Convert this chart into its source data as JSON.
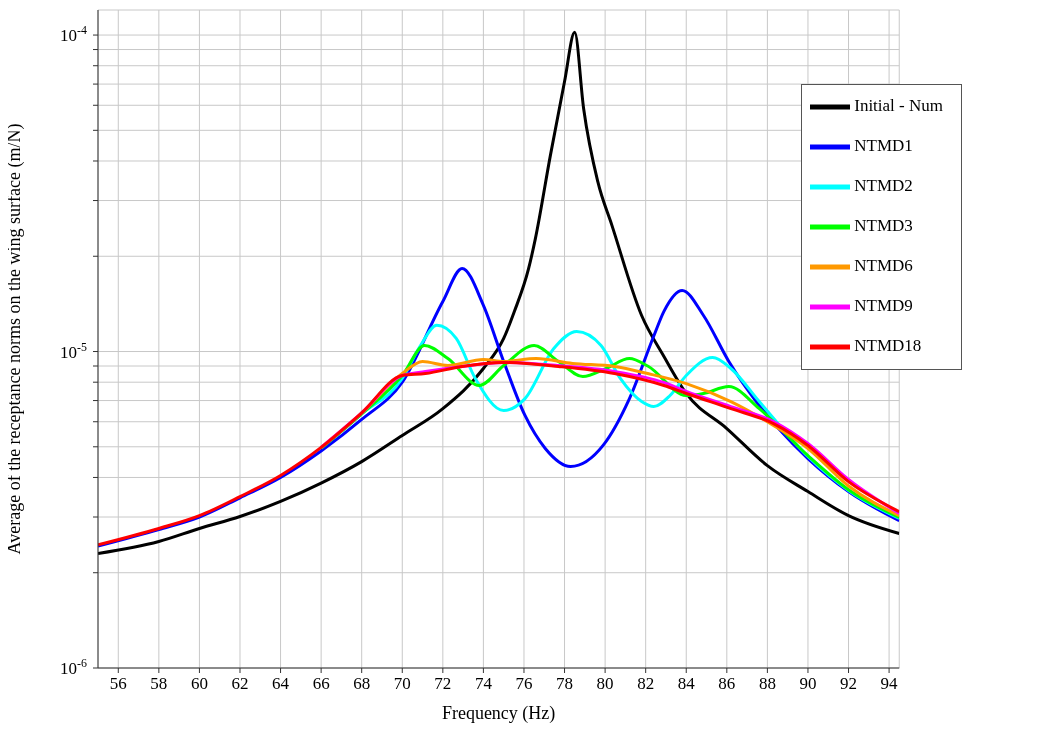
{
  "chart_data": {
    "type": "line",
    "xlabel": "Frequency (Hz)",
    "ylabel": "Average of the receptance norms on the wing surface (m/N)",
    "xlim": [
      55,
      94.5
    ],
    "xticks": [
      56,
      58,
      60,
      62,
      64,
      66,
      68,
      70,
      72,
      74,
      76,
      78,
      80,
      82,
      84,
      86,
      88,
      90,
      92,
      94
    ],
    "ylim": [
      1e-06,
      0.00012
    ],
    "log": "y",
    "yticks": [
      {
        "value": 1e-06,
        "label": "10$^{-6}$"
      },
      {
        "value": 2e-06,
        "label": null
      },
      {
        "value": 3e-06,
        "label": null
      },
      {
        "value": 4e-06,
        "label": null
      },
      {
        "value": 5e-06,
        "label": null
      },
      {
        "value": 6e-06,
        "label": null
      },
      {
        "value": 7e-06,
        "label": null
      },
      {
        "value": 8e-06,
        "label": null
      },
      {
        "value": 9e-06,
        "label": null
      },
      {
        "value": 1e-05,
        "label": "10$^{-5}$"
      },
      {
        "value": 2e-05,
        "label": null
      },
      {
        "value": 3e-05,
        "label": null
      },
      {
        "value": 4e-05,
        "label": null
      },
      {
        "value": 5e-05,
        "label": null
      },
      {
        "value": 6e-05,
        "label": null
      },
      {
        "value": 7e-05,
        "label": null
      },
      {
        "value": 8e-05,
        "label": null
      },
      {
        "value": 9e-05,
        "label": null
      },
      {
        "value": 0.0001,
        "label": "10$^{-4}$"
      }
    ],
    "grid": true,
    "legend": "top right",
    "line_style": "solid",
    "series": [
      {
        "name": "Initial - Num",
        "color": "#000000",
        "x": [
          55,
          58,
          60,
          62,
          64,
          66,
          68,
          70,
          72,
          74,
          75,
          75.53,
          76.23,
          76.56,
          77.3,
          78,
          78.5,
          78.94,
          79.64,
          80.34,
          81.8,
          82.9,
          84,
          86,
          88,
          90,
          92,
          94.5
        ],
        "values": [
          2.3e-06,
          2.51e-06,
          2.76e-06,
          3.01e-06,
          3.36e-06,
          3.84e-06,
          4.49e-06,
          5.43e-06,
          6.6e-06,
          8.84e-06,
          1.1e-05,
          1.34e-05,
          1.83e-05,
          2.27e-05,
          4.16e-05,
          7.13e-05,
          0.000102,
          5.86e-05,
          3.44e-05,
          2.5e-05,
          1.3e-05,
          9.65e-06,
          7.37e-06,
          5.71e-06,
          4.36e-06,
          3.61e-06,
          3.03e-06,
          2.66e-06
        ]
      },
      {
        "name": "NTMD1",
        "color": "#0000ff",
        "x": [
          55,
          58,
          60,
          62,
          64,
          66,
          68,
          70,
          72,
          72.95,
          74,
          75,
          76.05,
          77.05,
          78.3,
          79.9,
          81.2,
          82.4,
          82.9,
          83.8,
          84.85,
          86.1,
          87.6,
          88.55,
          90,
          92,
          94.5
        ],
        "values": [
          2.43e-06,
          2.74e-06,
          3e-06,
          3.45e-06,
          4e-06,
          4.85e-06,
          6.1e-06,
          8e-06,
          1.44e-05,
          1.83e-05,
          1.4e-05,
          9.3e-06,
          6.28e-06,
          4.94e-06,
          4.33e-06,
          5.05e-06,
          7.1e-06,
          1.12e-05,
          1.34e-05,
          1.56e-05,
          1.3e-05,
          9.3e-06,
          6.75e-06,
          5.71e-06,
          4.59e-06,
          3.61e-06,
          2.92e-06
        ]
      },
      {
        "name": "NTMD2",
        "color": "#00ffff",
        "x": [
          66,
          68,
          70,
          70.9,
          71.7,
          72.66,
          73.6,
          75,
          76.05,
          77.46,
          78.6,
          79.8,
          80.75,
          81.8,
          82.4,
          83.2,
          84,
          85.3,
          86.2,
          87.6,
          90,
          92,
          94.5
        ],
        "values": [
          4.95e-06,
          6.35e-06,
          8.22e-06,
          1.045e-05,
          1.21e-05,
          1.1e-05,
          8.22e-06,
          6.51e-06,
          7.1e-06,
          1.02e-05,
          1.157e-05,
          1.045e-05,
          8.22e-06,
          6.95e-06,
          6.7e-06,
          7.26e-06,
          8.4e-06,
          9.57e-06,
          8.84e-06,
          6.95e-06,
          4.66e-06,
          3.64e-06,
          2.97e-06
        ]
      },
      {
        "name": "NTMD3",
        "color": "#00ff00",
        "x": [
          66,
          68,
          70,
          71.1,
          72.25,
          73.8,
          75,
          76.5,
          77.7,
          78.9,
          80.05,
          81.2,
          82.1,
          84,
          84.85,
          86.1,
          87.6,
          90,
          92,
          94.5
        ],
        "values": [
          4.95e-06,
          6.35e-06,
          8.4e-06,
          1.045e-05,
          9.5e-06,
          7.81e-06,
          9.03e-06,
          1.045e-05,
          9.3e-06,
          8.34e-06,
          8.84e-06,
          9.5e-06,
          9e-06,
          7.26e-06,
          7.37e-06,
          7.75e-06,
          6.6e-06,
          4.69e-06,
          3.66e-06,
          2.99e-06
        ]
      },
      {
        "name": "NTMD6",
        "color": "#ff9900",
        "x": [
          66,
          68,
          70,
          71,
          72.25,
          74,
          75,
          76.6,
          78.4,
          80.46,
          82.1,
          84,
          86.2,
          88.3,
          90,
          92,
          94.5
        ],
        "values": [
          4.98e-06,
          6.4e-06,
          8.52e-06,
          9.3e-06,
          9.03e-06,
          9.43e-06,
          9.3e-06,
          9.5e-06,
          9.17e-06,
          8.97e-06,
          8.52e-06,
          7.92e-06,
          6.95e-06,
          5.84e-06,
          4.94e-06,
          3.76e-06,
          3.03e-06
        ]
      },
      {
        "name": "NTMD9",
        "color": "#ff00ff",
        "x": [
          66,
          68,
          70,
          71.14,
          72.95,
          75,
          77.7,
          80.46,
          82.9,
          84,
          86.2,
          88.3,
          90,
          92,
          94.5
        ],
        "values": [
          4.98e-06,
          6.4e-06,
          8.4e-06,
          8.65e-06,
          8.97e-06,
          9.23e-06,
          9.03e-06,
          8.65e-06,
          7.98e-06,
          7.48e-06,
          6.7e-06,
          6.01e-06,
          5.12e-06,
          3.94e-06,
          3.08e-06
        ]
      },
      {
        "name": "NTMD18",
        "color": "#ff0000",
        "x": [
          55,
          58,
          60,
          62,
          64,
          66,
          68,
          70,
          71.14,
          72.95,
          75,
          77.7,
          80.46,
          82.9,
          84,
          86.2,
          88.3,
          90,
          92,
          94.5
        ],
        "values": [
          2.45e-06,
          2.76e-06,
          3.03e-06,
          3.48e-06,
          4.06e-06,
          4.98e-06,
          6.4e-06,
          8.4e-06,
          8.52e-06,
          8.97e-06,
          9.23e-06,
          8.97e-06,
          8.52e-06,
          7.81e-06,
          7.37e-06,
          6.6e-06,
          5.92e-06,
          5.05e-06,
          3.88e-06,
          3.12e-06
        ]
      }
    ]
  }
}
